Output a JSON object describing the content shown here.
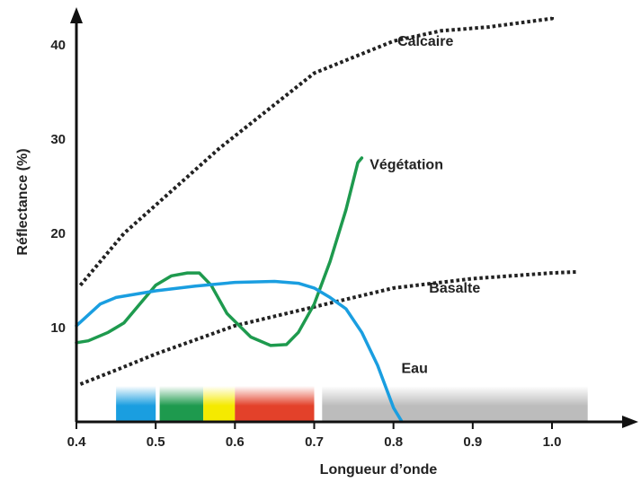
{
  "chart_data": {
    "type": "line",
    "xlabel": "Longueur d’onde",
    "ylabel": "Réflectance (%)",
    "xlim": [
      0.4,
      1.05
    ],
    "ylim": [
      0,
      43
    ],
    "x_ticks": [
      "0.4",
      "0.5",
      "0.6",
      "0.7",
      "0.8",
      "0.9",
      "1.0"
    ],
    "y_ticks": [
      "10",
      "20",
      "30",
      "40"
    ],
    "grid": false,
    "series": [
      {
        "name": "Calcaire",
        "style": "dotted",
        "color": "#222222",
        "points": [
          [
            0.405,
            14.5
          ],
          [
            0.46,
            20
          ],
          [
            0.52,
            24.5
          ],
          [
            0.58,
            29
          ],
          [
            0.7,
            37
          ],
          [
            0.75,
            38.7
          ],
          [
            0.8,
            40.4
          ],
          [
            0.86,
            41.5
          ],
          [
            0.92,
            41.9
          ],
          [
            1.0,
            42.8
          ],
          [
            1.0,
            43.0
          ]
        ]
      },
      {
        "name": "Basalte",
        "style": "dotted",
        "color": "#222222",
        "points": [
          [
            0.405,
            4
          ],
          [
            0.45,
            5.5
          ],
          [
            0.5,
            7.2
          ],
          [
            0.6,
            10.2
          ],
          [
            0.7,
            12.2
          ],
          [
            0.8,
            14.2
          ],
          [
            0.9,
            15.2
          ],
          [
            1.0,
            15.8
          ],
          [
            1.03,
            15.9
          ]
        ]
      },
      {
        "name": "Végétation",
        "style": "solid",
        "color": "#1e9a4e",
        "points": [
          [
            0.4,
            8.4
          ],
          [
            0.415,
            8.6
          ],
          [
            0.44,
            9.5
          ],
          [
            0.46,
            10.5
          ],
          [
            0.48,
            12.5
          ],
          [
            0.5,
            14.5
          ],
          [
            0.52,
            15.5
          ],
          [
            0.54,
            15.8
          ],
          [
            0.555,
            15.8
          ],
          [
            0.57,
            14.5
          ],
          [
            0.59,
            11.5
          ],
          [
            0.62,
            9
          ],
          [
            0.645,
            8.1
          ],
          [
            0.665,
            8.2
          ],
          [
            0.68,
            9.5
          ],
          [
            0.7,
            12.5
          ],
          [
            0.72,
            17
          ],
          [
            0.74,
            22.5
          ],
          [
            0.755,
            27.5
          ],
          [
            0.76,
            28
          ]
        ]
      },
      {
        "name": "Eau",
        "style": "solid",
        "color": "#1a9ee0",
        "points": [
          [
            0.4,
            10.2
          ],
          [
            0.43,
            12.5
          ],
          [
            0.45,
            13.2
          ],
          [
            0.5,
            13.9
          ],
          [
            0.55,
            14.4
          ],
          [
            0.6,
            14.8
          ],
          [
            0.65,
            14.9
          ],
          [
            0.68,
            14.7
          ],
          [
            0.7,
            14.2
          ],
          [
            0.72,
            13.2
          ],
          [
            0.74,
            12
          ],
          [
            0.76,
            9.5
          ],
          [
            0.78,
            6
          ],
          [
            0.8,
            1.5
          ],
          [
            0.81,
            0.1
          ]
        ]
      }
    ],
    "bands": [
      {
        "from": 0.45,
        "to": 0.5,
        "color": "#1a9ee0"
      },
      {
        "from": 0.505,
        "to": 0.56,
        "color": "#1e9a4e"
      },
      {
        "from": 0.56,
        "to": 0.6,
        "color": "#f5ea00"
      },
      {
        "from": 0.6,
        "to": 0.7,
        "color": "#e3412a"
      },
      {
        "from": 0.71,
        "to": 1.045,
        "color": "#bcbcbc"
      }
    ]
  }
}
